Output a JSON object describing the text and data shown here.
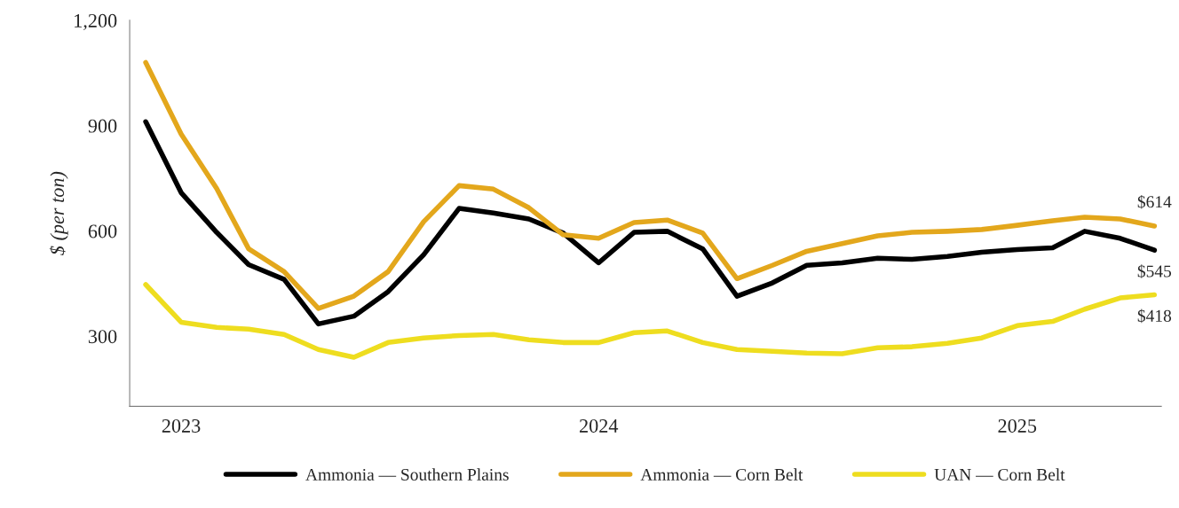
{
  "chart_data": {
    "type": "line",
    "ylabel": "$ (per ton)",
    "x": [
      "2022-12",
      "2023-01",
      "2023-02",
      "2023-03",
      "2023-04",
      "2023-05",
      "2023-06",
      "2023-07",
      "2023-08",
      "2023-09",
      "2023-10",
      "2023-11",
      "2023-12",
      "2024-01",
      "2024-02",
      "2024-03",
      "2024-04",
      "2024-05",
      "2024-06",
      "2024-07",
      "2024-08",
      "2024-09",
      "2024-10",
      "2024-11",
      "2024-12",
      "2025-01",
      "2025-02",
      "2025-03",
      "2025-04",
      "2025-05"
    ],
    "xlim": [
      "2022-11-17",
      "2025-05-07"
    ],
    "xticks": [
      "2023",
      "2024",
      "2025"
    ],
    "ylim": [
      100,
      1200
    ],
    "yticks": [
      300,
      600,
      900,
      {
        "value": 1200,
        "label": "1,200"
      }
    ],
    "grid": false,
    "legend": "bottom",
    "line_style": "solid",
    "marker": "none",
    "series": [
      {
        "name": "Ammonia — Southern Plains",
        "color": "#000000",
        "values": [
          911,
          709,
          596,
          504,
          462,
          335,
          357,
          427,
          532,
          664,
          651,
          634,
          594,
          509,
          596,
          599,
          549,
          414,
          452,
          502,
          509,
          522,
          519,
          527,
          539,
          547,
          552,
          599,
          579,
          545
        ]
      },
      {
        "name": "Ammonia — Corn Belt",
        "color": "#e3a71c",
        "values": [
          1080,
          876,
          721,
          549,
          484,
          379,
          414,
          484,
          626,
          729,
          719,
          666,
          589,
          579,
          624,
          631,
          594,
          464,
          502,
          542,
          564,
          586,
          596,
          599,
          604,
          616,
          629,
          639,
          634,
          614
        ]
      },
      {
        "name": "UAN — Corn Belt",
        "color": "#eedd1f",
        "values": [
          447,
          340,
          325,
          320,
          305,
          262,
          240,
          282,
          295,
          302,
          305,
          290,
          282,
          282,
          310,
          315,
          282,
          262,
          257,
          252,
          250,
          267,
          270,
          280,
          295,
          330,
          342,
          377,
          409,
          418
        ]
      }
    ],
    "annotations": [
      {
        "text": "$614",
        "x": "2025-05",
        "y": 614
      },
      {
        "text": "$545",
        "x": "2025-05",
        "y": 545
      },
      {
        "text": "$418",
        "x": "2025-05",
        "y": 418
      }
    ]
  }
}
